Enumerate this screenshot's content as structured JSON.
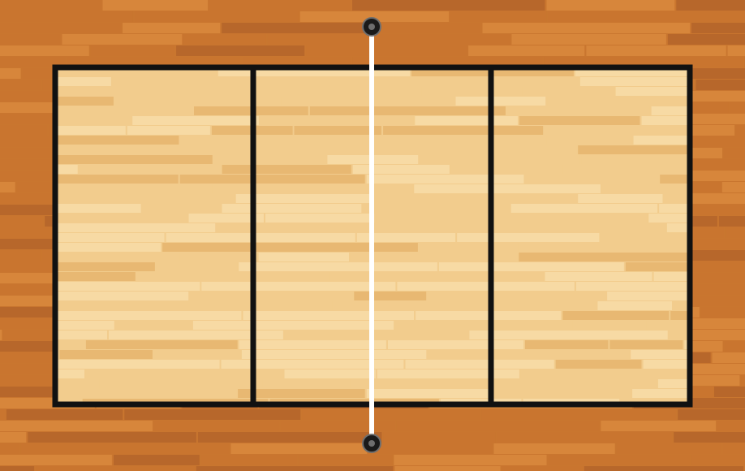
{
  "scene": {
    "subject": "volleyball-court-top-view",
    "surface": "hardwood",
    "colors": {
      "outer_floor": "#C9762F",
      "outer_floor_light": "#D98A3D",
      "outer_floor_dark": "#B4652A",
      "court_floor": "#F2CC8D",
      "court_floor_light": "#F7DCA6",
      "court_floor_dark": "#E7B66F",
      "boundary_line": "#111111",
      "net_line": "#FFFFFF",
      "post": "#1A1A1A",
      "post_ring": "#6E6E6E"
    },
    "court": {
      "sections": 3,
      "lines": [
        "left-attack-line",
        "right-attack-line"
      ]
    },
    "net": {
      "posts": [
        "top-net-post",
        "bottom-net-post"
      ]
    }
  }
}
